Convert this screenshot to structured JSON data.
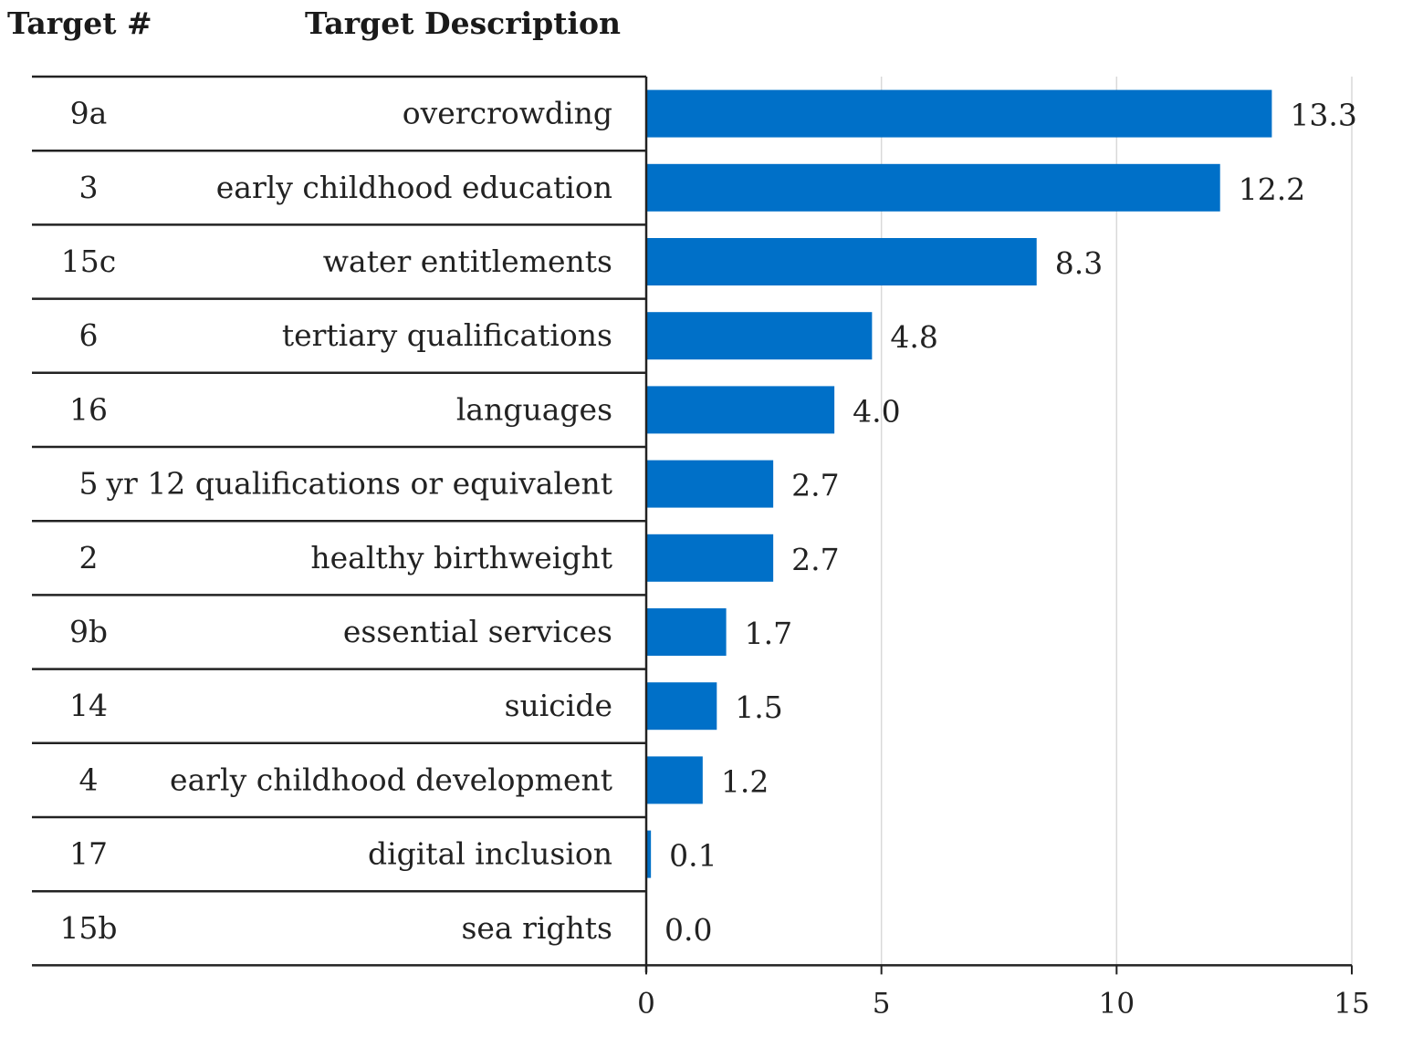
{
  "header": {
    "target_num": "Target #",
    "target_desc": "Target Description"
  },
  "chart_data": {
    "type": "bar",
    "orientation": "horizontal",
    "x_ticks": [
      0,
      5,
      10,
      15
    ],
    "xlim": [
      0,
      15
    ],
    "grid": true,
    "bar_color": "#0070C8",
    "rows": [
      {
        "target": "9a",
        "description": "overcrowding",
        "value": 13.3,
        "label": "13.3"
      },
      {
        "target": "3",
        "description": "early childhood education",
        "value": 12.2,
        "label": "12.2"
      },
      {
        "target": "15c",
        "description": "water entitlements",
        "value": 8.3,
        "label": "8.3"
      },
      {
        "target": "6",
        "description": "tertiary qualifications",
        "value": 4.8,
        "label": "4.8"
      },
      {
        "target": "16",
        "description": "languages",
        "value": 4.0,
        "label": "4.0"
      },
      {
        "target": "5",
        "description": "yr 12 qualifications or equivalent",
        "value": 2.7,
        "label": "2.7"
      },
      {
        "target": "2",
        "description": "healthy birthweight",
        "value": 2.7,
        "label": "2.7"
      },
      {
        "target": "9b",
        "description": "essential services",
        "value": 1.7,
        "label": "1.7"
      },
      {
        "target": "14",
        "description": "suicide",
        "value": 1.5,
        "label": "1.5"
      },
      {
        "target": "4",
        "description": "early childhood development",
        "value": 1.2,
        "label": "1.2"
      },
      {
        "target": "17",
        "description": "digital inclusion",
        "value": 0.1,
        "label": "0.1"
      },
      {
        "target": "15b",
        "description": "sea rights",
        "value": 0.0,
        "label": "0.0"
      }
    ]
  }
}
